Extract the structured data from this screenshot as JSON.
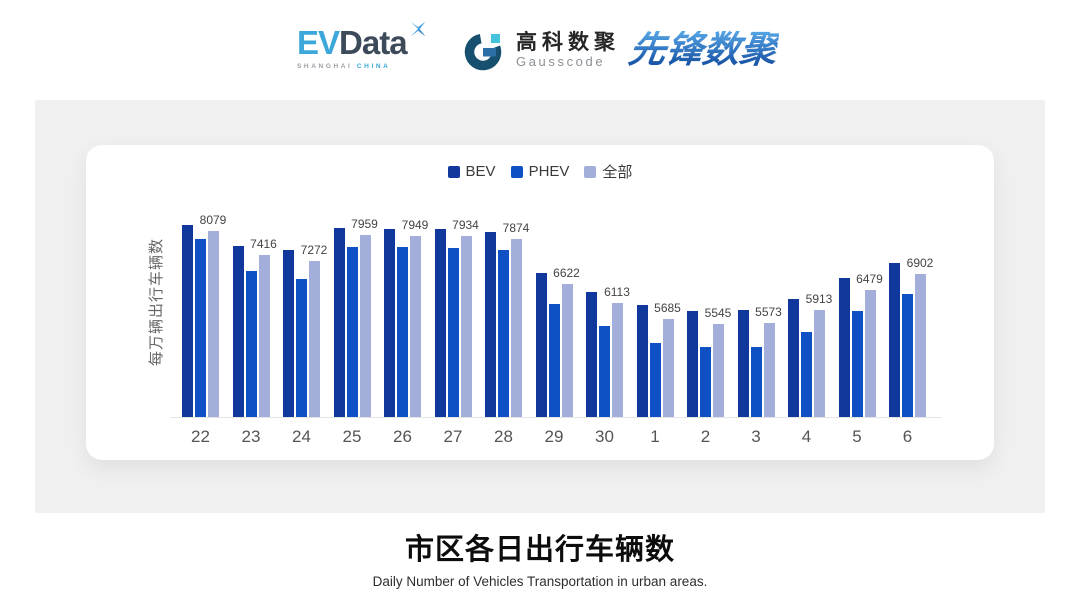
{
  "header": {
    "evdata": {
      "ev": "EV",
      "data": "Data",
      "sub_left": "SHANGHAI",
      "sub_right": "CHINA"
    },
    "gausscode": {
      "cn": "高科数聚",
      "en": "Gausscode"
    },
    "xianfeng": {
      "text": "先锋数聚"
    }
  },
  "chart_data": {
    "type": "bar",
    "title": "市区各日出行车辆数",
    "subtitle": "Daily Number of Vehicles Transportation in urban areas.",
    "ylabel": "每万辆出行车辆数",
    "xlabel": "",
    "categories": [
      "22",
      "23",
      "24",
      "25",
      "26",
      "27",
      "28",
      "29",
      "30",
      "1",
      "2",
      "3",
      "4",
      "5",
      "6"
    ],
    "series": [
      {
        "name": "BEV",
        "color": "#10389C",
        "values": [
          8240,
          7680,
          7560,
          8150,
          8130,
          8125,
          8060,
          6925,
          6425,
          6060,
          5900,
          5925,
          6220,
          6790,
          7215
        ]
      },
      {
        "name": "PHEV",
        "color": "#0F50C4",
        "values": [
          7860,
          6990,
          6760,
          7650,
          7650,
          7610,
          7560,
          6090,
          5490,
          5020,
          4910,
          4910,
          5335,
          5905,
          6360
        ]
      },
      {
        "name": "全部",
        "color": "#A3AEDB",
        "values": [
          8079,
          7416,
          7272,
          7959,
          7949,
          7934,
          7874,
          6622,
          6113,
          5685,
          5545,
          5573,
          5913,
          6479,
          6902
        ]
      }
    ],
    "value_labels_on_series": "全部",
    "value_labels": [
      8079,
      7416,
      7272,
      7959,
      7949,
      7934,
      7874,
      6622,
      6113,
      5685,
      5545,
      5573,
      5913,
      6479,
      6902
    ],
    "ylim": [
      3000,
      8600
    ],
    "grid": false,
    "axis_ticks_hidden": true,
    "legend_position": "top-center"
  },
  "footer": {
    "title": "市区各日出行车辆数",
    "subtitle": "Daily Number of Vehicles Transportation in urban areas."
  },
  "colors": {
    "bev": "#10389C",
    "phev": "#0F50C4",
    "total": "#A3AEDB",
    "panel_bg": "#F0F0F0",
    "card_bg": "#FFFFFF",
    "evdata_cyan": "#3BA7DA",
    "evdata_dark": "#3D4A5A",
    "gauss_dark": "#17506F",
    "gauss_blue": "#2C6FA6",
    "gauss_cyan": "#44C3DC",
    "xianfeng_blue": "#2B72C8",
    "axis_line": "#E4E4E4",
    "tick_text": "#555555",
    "value_label_text": "#444444",
    "legend_text": "#3A3A3A"
  }
}
